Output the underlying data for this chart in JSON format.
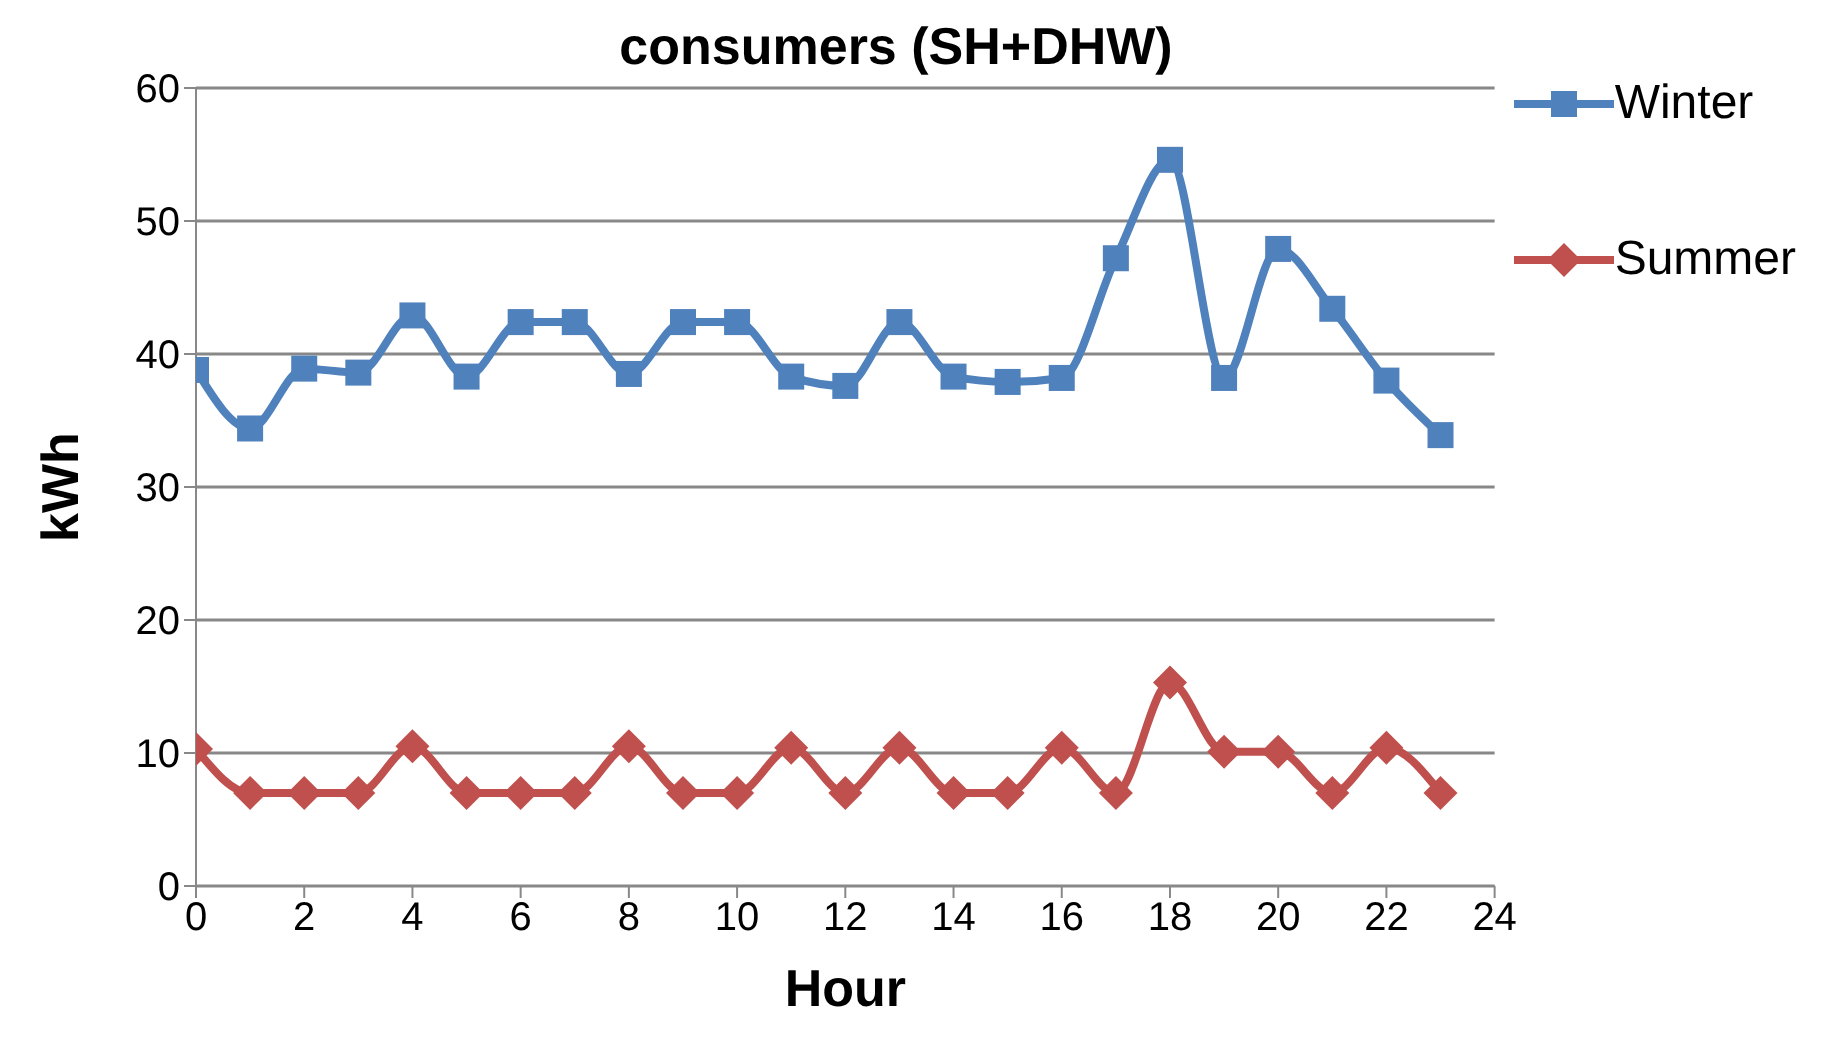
{
  "chart_data": {
    "type": "line",
    "title": "consumers (SH+DHW)",
    "xlabel": "Hour",
    "ylabel": "kWh",
    "x": [
      0,
      1,
      2,
      3,
      4,
      5,
      6,
      7,
      8,
      9,
      10,
      11,
      12,
      13,
      14,
      15,
      16,
      17,
      18,
      19,
      20,
      21,
      22,
      23
    ],
    "series": [
      {
        "name": "Winter",
        "color": "#4f81bd",
        "marker": "square",
        "values": [
          38.8,
          34.4,
          38.9,
          38.6,
          42.9,
          38.3,
          42.4,
          42.4,
          38.5,
          42.4,
          42.4,
          38.3,
          37.6,
          42.4,
          38.3,
          37.9,
          38.2,
          47.2,
          54.6,
          38.2,
          47.9,
          43.4,
          38.0,
          33.9
        ]
      },
      {
        "name": "Summer",
        "color": "#c0504d",
        "marker": "diamond",
        "values": [
          10.3,
          7,
          7,
          7,
          10.5,
          7,
          7,
          7,
          10.5,
          7,
          7,
          10.4,
          7,
          10.4,
          7,
          7,
          10.4,
          7,
          15.3,
          10.1,
          10.1,
          7,
          10.4,
          7
        ]
      }
    ],
    "xlim": [
      0,
      24
    ],
    "xticks": [
      0,
      2,
      4,
      6,
      8,
      10,
      12,
      14,
      16,
      18,
      20,
      22,
      24
    ],
    "ylim": [
      0,
      60
    ],
    "yticks": [
      0,
      10,
      20,
      30,
      40,
      50,
      60
    ],
    "grid": "y",
    "legend": "top right",
    "line_style": "solid"
  }
}
